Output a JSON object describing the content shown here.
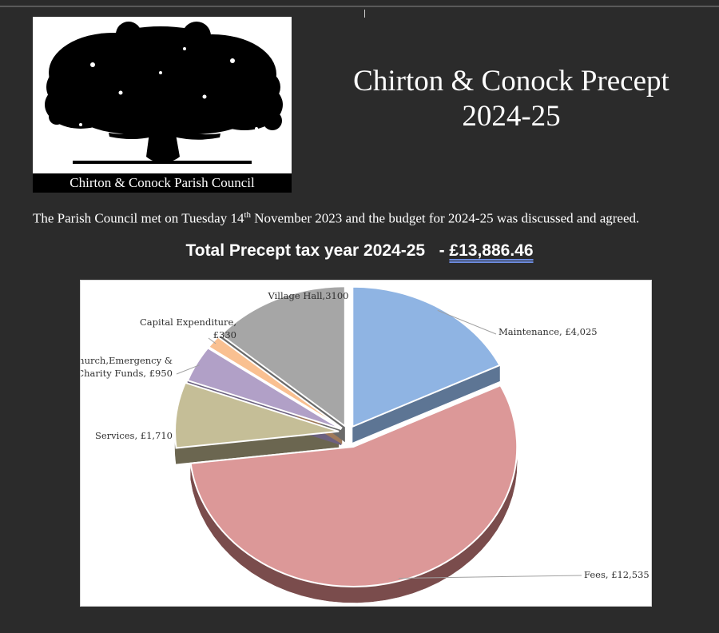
{
  "logo": {
    "caption": "Chirton & Conock Parish Council",
    "icon": "oak-tree-silhouette"
  },
  "title": {
    "line1": "Chirton & Conock Precept",
    "line2": "2024-25"
  },
  "intro": {
    "before": "The Parish Council met on Tuesday 14",
    "sup": "th",
    "after": " November 2023 and the budget for 2024-25 was discussed and agreed."
  },
  "total": {
    "label": "Total Precept tax year 2024-25   - ",
    "amount": "£13,886.46"
  },
  "colors": {
    "background": "#2b2b2b",
    "Maintenance": "#8fb4e3",
    "Fees": "#dc9898",
    "Services": "#c5be97",
    "Church": "#b1a0c7",
    "Capital": "#f9c091",
    "VillageHall": "#a6a6a6"
  },
  "chart_data": {
    "type": "pie",
    "style": "3d-exploded",
    "series": [
      {
        "values": [
          4025,
          12535,
          1710,
          950,
          330,
          3100
        ]
      }
    ],
    "slices": [
      {
        "category": "Maintenance",
        "value": 4025,
        "label": [
          "Maintenance, £4,025"
        ],
        "color": "#8fb4e3",
        "side": "#5d7594"
      },
      {
        "category": "Fees",
        "value": 12535,
        "label": [
          "Fees, £12,535"
        ],
        "color": "#dc9898",
        "side": "#7a4c4c"
      },
      {
        "category": "Services",
        "value": 1710,
        "label": [
          "Services, £1,710"
        ],
        "color": "#c5be97",
        "side": "#6b6650"
      },
      {
        "category": "Church,Emergency & Charity Funds",
        "value": 950,
        "label": [
          "Church,Emergency &",
          "Charity Funds, £950"
        ],
        "color": "#b1a0c7",
        "side": "#6c6180"
      },
      {
        "category": "Capital Expenditure",
        "value": 330,
        "label": [
          "Capital Expenditure,",
          "£330"
        ],
        "color": "#f9c091",
        "side": "#a07a5a"
      },
      {
        "category": "Village Hall",
        "value": 3100,
        "label": [
          "Village Hall,3100"
        ],
        "color": "#a6a6a6",
        "side": "#6a6a6a"
      }
    ],
    "legend": "none"
  }
}
